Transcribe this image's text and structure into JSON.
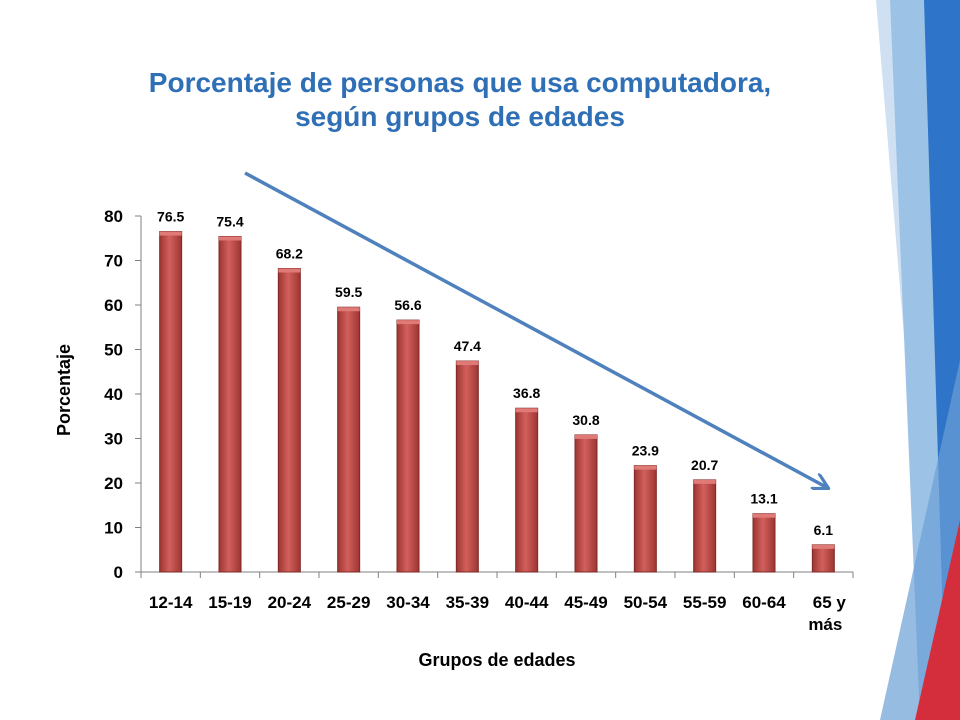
{
  "slide": {
    "title_line1": "Porcentaje de personas que usa computadora,",
    "title_line2": "según grupos de edades"
  },
  "colors": {
    "title": "#2f6fb5",
    "bar": "#c0504d",
    "bar_dark": "#7f2b28",
    "arrow": "#4f81bd",
    "deco_blue": "#2e74c8",
    "deco_light": "#9cc3e6",
    "deco_red": "#d42e3d"
  },
  "chart_data": {
    "type": "bar",
    "categories": [
      "12-14",
      "15-19",
      "20-24",
      "25-29",
      "30-34",
      "35-39",
      "40-44",
      "45-49",
      "50-54",
      "55-59",
      "60-64",
      "65 y más"
    ],
    "values": [
      76.5,
      75.4,
      68.2,
      59.5,
      56.6,
      47.4,
      36.8,
      30.8,
      23.9,
      20.7,
      13.1,
      6.1
    ],
    "title": "",
    "xlabel": "Grupos de edades",
    "ylabel": "Porcentaje",
    "ylim": [
      0,
      80
    ],
    "yticks": [
      0,
      10,
      20,
      30,
      40,
      50,
      60,
      70,
      80
    ],
    "grid": false,
    "legend": "none",
    "annotations": [
      "decreasing trend arrow"
    ]
  }
}
